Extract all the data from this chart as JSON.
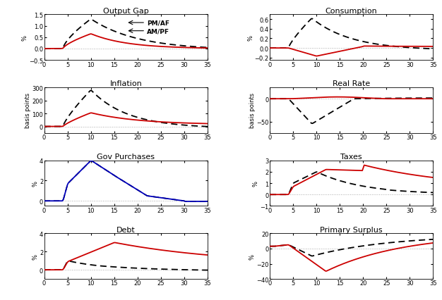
{
  "colors": {
    "solid_red": "#cc0000",
    "dashed_black": "#000000",
    "blue_solid": "#0000bb",
    "dotted_zero": "#aaaaaa"
  },
  "panels": [
    {
      "title": "Output Gap",
      "ylabel": "%",
      "ylim": [
        -0.5,
        1.5
      ],
      "yticks": [
        -0.5,
        0,
        0.5,
        1.0,
        1.5
      ],
      "has_legend": true
    },
    {
      "title": "Consumption",
      "ylabel": "%",
      "ylim": [
        -0.25,
        0.7
      ],
      "yticks": [
        -0.2,
        0,
        0.2,
        0.4,
        0.6
      ],
      "has_legend": false
    },
    {
      "title": "Inflation",
      "ylabel": "basis points",
      "ylim": [
        -50,
        300
      ],
      "yticks": [
        0,
        100,
        200,
        300
      ],
      "has_legend": false
    },
    {
      "title": "Real Rate",
      "ylabel": "basis points",
      "ylim": [
        -75,
        25
      ],
      "yticks": [
        -50,
        0
      ],
      "has_legend": false
    },
    {
      "title": "Gov Purchases",
      "ylabel": "%",
      "ylim": [
        -0.5,
        4
      ],
      "yticks": [
        0,
        2,
        4
      ],
      "has_legend": false,
      "single_line": true
    },
    {
      "title": "Taxes",
      "ylabel": "%",
      "ylim": [
        -1,
        3
      ],
      "yticks": [
        -1,
        0,
        1,
        2,
        3
      ],
      "has_legend": false
    },
    {
      "title": "Debt",
      "ylabel": "%",
      "ylim": [
        -1,
        4
      ],
      "yticks": [
        0,
        2,
        4
      ],
      "has_legend": false
    },
    {
      "title": "Primary Surplus",
      "ylabel": "%",
      "ylim": [
        -40,
        20
      ],
      "yticks": [
        -40,
        -20,
        0,
        20
      ],
      "has_legend": false
    }
  ]
}
